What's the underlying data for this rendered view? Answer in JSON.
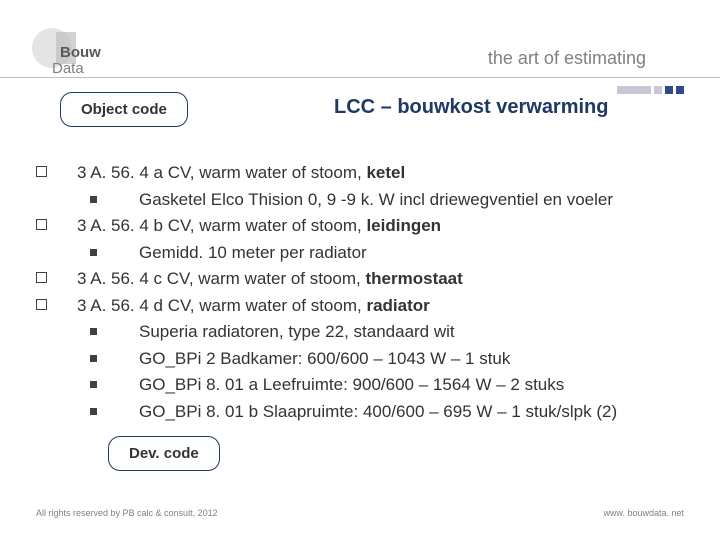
{
  "header": {
    "logo_top": "Bouw",
    "logo_bottom": "Data",
    "tagline": "the art of estimating"
  },
  "badges": {
    "object_code": "Object code",
    "dev_code": "Dev. code"
  },
  "title": "LCC – bouwkost verwarming",
  "items": [
    {
      "code": "3 A. 56. 4 a CV, warm water of stoom, ",
      "bold": "ketel",
      "subs": [
        "Gasketel Elco Thision 0, 9 -9 k. W incl driewegventiel en voeler"
      ]
    },
    {
      "code": "3 A. 56. 4 b CV, warm water of stoom, ",
      "bold": "leidingen",
      "subs": [
        "Gemidd. 10 meter per radiator"
      ]
    },
    {
      "code": "3 A. 56. 4 c CV, warm water of stoom, ",
      "bold": "thermostaat",
      "subs": []
    },
    {
      "code": "3 A. 56. 4 d CV, warm water of stoom, ",
      "bold": "radiator",
      "subs": [
        "Superia radiatoren, type 22, standaard wit",
        "GO_BPi 2 Badkamer: 600/600 – 1043 W – 1 stuk",
        "GO_BPi 8. 01 a Leefruimte: 900/600 – 1564 W – 2 stuks",
        "GO_BPi 8. 01 b Slaapruimte: 400/600 – 695 W – 1 stuk/slpk (2)"
      ]
    }
  ],
  "footer": {
    "left": "All rights reserved by PB calc & consult, 2012",
    "right": "www. bouwdata. net"
  },
  "colors": {
    "accent": "#1f3864",
    "text": "#333333",
    "muted": "#808080"
  }
}
